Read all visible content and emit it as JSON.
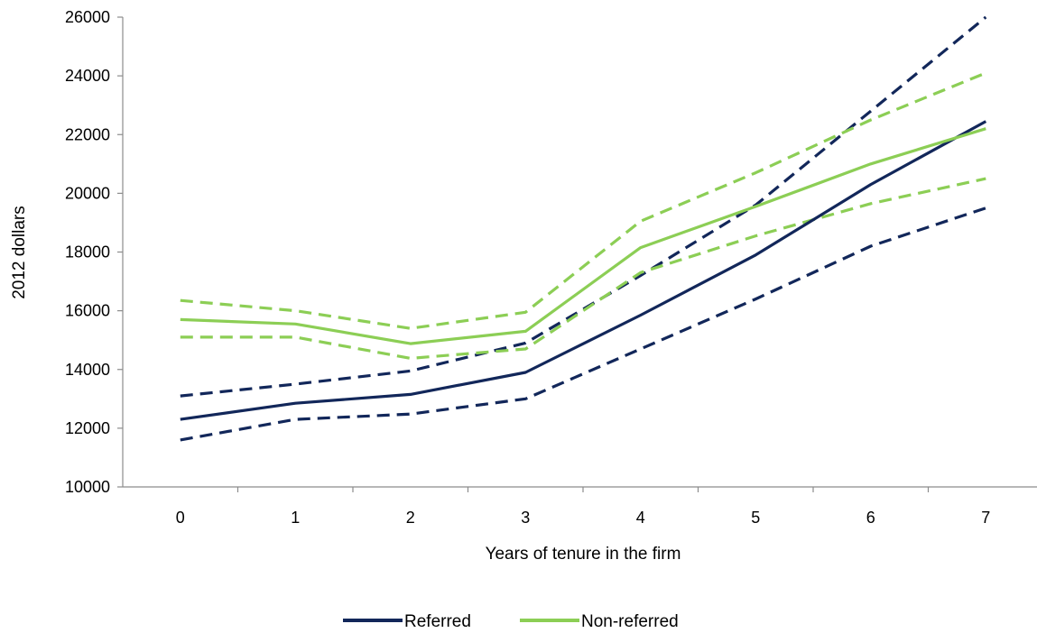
{
  "chart_data": {
    "type": "line",
    "xlabel": "Years of tenure in the firm",
    "ylabel": "2012 dollars",
    "categories": [
      "0",
      "1",
      "2",
      "3",
      "4",
      "5",
      "6",
      "7"
    ],
    "ylim": [
      10000,
      26000
    ],
    "yticks": [
      10000,
      12000,
      14000,
      16000,
      18000,
      20000,
      22000,
      24000,
      26000
    ],
    "grid": false,
    "legend_position": "bottom",
    "series": [
      {
        "name": "Referred",
        "color": "#12275a",
        "style": "solid",
        "legend": true,
        "values": [
          12300,
          12850,
          13150,
          13900,
          15850,
          17900,
          20300,
          22450
        ]
      },
      {
        "name": "Non-referred",
        "color": "#8cce55",
        "style": "solid",
        "legend": true,
        "values": [
          15700,
          15550,
          14880,
          15300,
          18150,
          19550,
          21000,
          22200
        ]
      },
      {
        "name": "",
        "color": "#12275a",
        "style": "dashed",
        "legend": false,
        "values": [
          13100,
          13500,
          13950,
          14900,
          17200,
          19600,
          22800,
          26000
        ]
      },
      {
        "name": "",
        "color": "#12275a",
        "style": "dashed",
        "legend": false,
        "values": [
          11600,
          12300,
          12480,
          13000,
          14700,
          16400,
          18200,
          19500
        ]
      },
      {
        "name": "",
        "color": "#8cce55",
        "style": "dashed",
        "legend": false,
        "values": [
          16350,
          16000,
          15400,
          15950,
          19050,
          20700,
          22500,
          24100
        ]
      },
      {
        "name": "",
        "color": "#8cce55",
        "style": "dashed",
        "legend": false,
        "values": [
          15100,
          15100,
          14380,
          14700,
          17300,
          18550,
          19650,
          20500
        ]
      }
    ]
  }
}
